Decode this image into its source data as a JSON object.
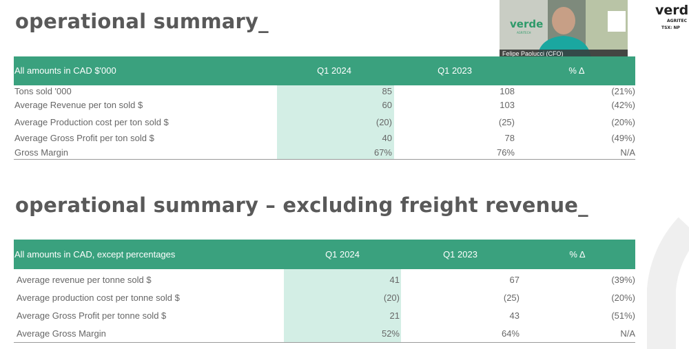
{
  "sections": [
    {
      "title": "operational summary_",
      "headers": [
        "All amounts in CAD $'000",
        "Q1 2024",
        "Q1 2023",
        "% Δ"
      ],
      "rows": [
        [
          "Tons sold '000",
          "85",
          "108",
          "(21%)"
        ],
        [
          "Average Revenue per ton sold $",
          "60",
          "103",
          "(42%)"
        ],
        [
          "Average Production cost per ton sold $",
          "(20)",
          "(25)",
          "(20%)"
        ],
        [
          "Average Gross Profit per ton sold $",
          "40",
          "78",
          "(49%)"
        ],
        [
          "Gross Margin",
          "67%",
          "76%",
          "N/A"
        ]
      ]
    },
    {
      "title": "operational summary – excluding freight revenue_",
      "headers": [
        "All amounts in CAD, except percentages",
        "Q1 2024",
        "Q1 2023",
        "% Δ"
      ],
      "rows": [
        [
          "Average revenue per tonne sold $",
          "41",
          "67",
          "(39%)"
        ],
        [
          "Average production cost per tonne sold $",
          "(20)",
          "(25)",
          "(20%)"
        ],
        [
          "Average Gross Profit per tonne sold $",
          "21",
          "43",
          "(51%)"
        ],
        [
          "Average Gross Margin",
          "52%",
          "64%",
          "N/A"
        ]
      ]
    }
  ],
  "webcam": {
    "logo": "verde",
    "logo_sub": "AGRITECH",
    "caption": "Felipe Paolucci (CFO)"
  },
  "corner_logo": {
    "name": "verde",
    "sub": "AGRITEC",
    "ticker": "TSX: NP"
  }
}
